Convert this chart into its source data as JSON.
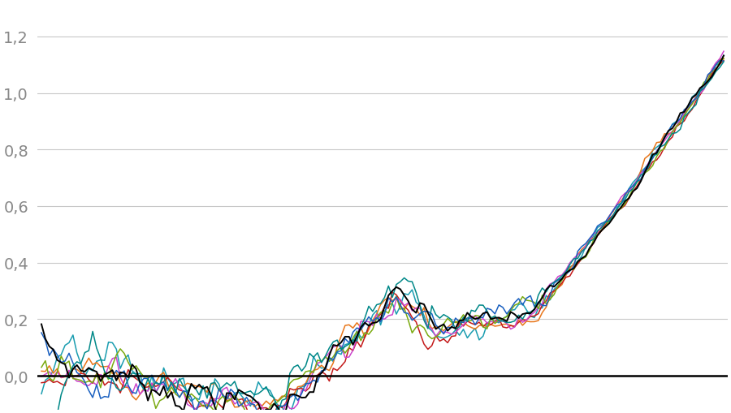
{
  "ytick_labels": [
    "0,0",
    "0,2",
    "0,4",
    "0,6",
    "0,8",
    "1,0",
    "1,2"
  ],
  "ytick_values": [
    0.0,
    0.2,
    0.4,
    0.6,
    0.8,
    1.0,
    1.2
  ],
  "ylim": [
    -0.12,
    1.32
  ],
  "background_color": "#ffffff",
  "grid_color": "#c8c8c8",
  "zero_line_color": "#000000",
  "colors": [
    "#000000",
    "#1a9db0",
    "#e8761a",
    "#c41a1a",
    "#cc44cc",
    "#7aaa10",
    "#1a60c0",
    "#008888"
  ],
  "linewidth": 1.1,
  "tick_label_color": "#888888",
  "tick_label_size": 14,
  "n_years": 174
}
